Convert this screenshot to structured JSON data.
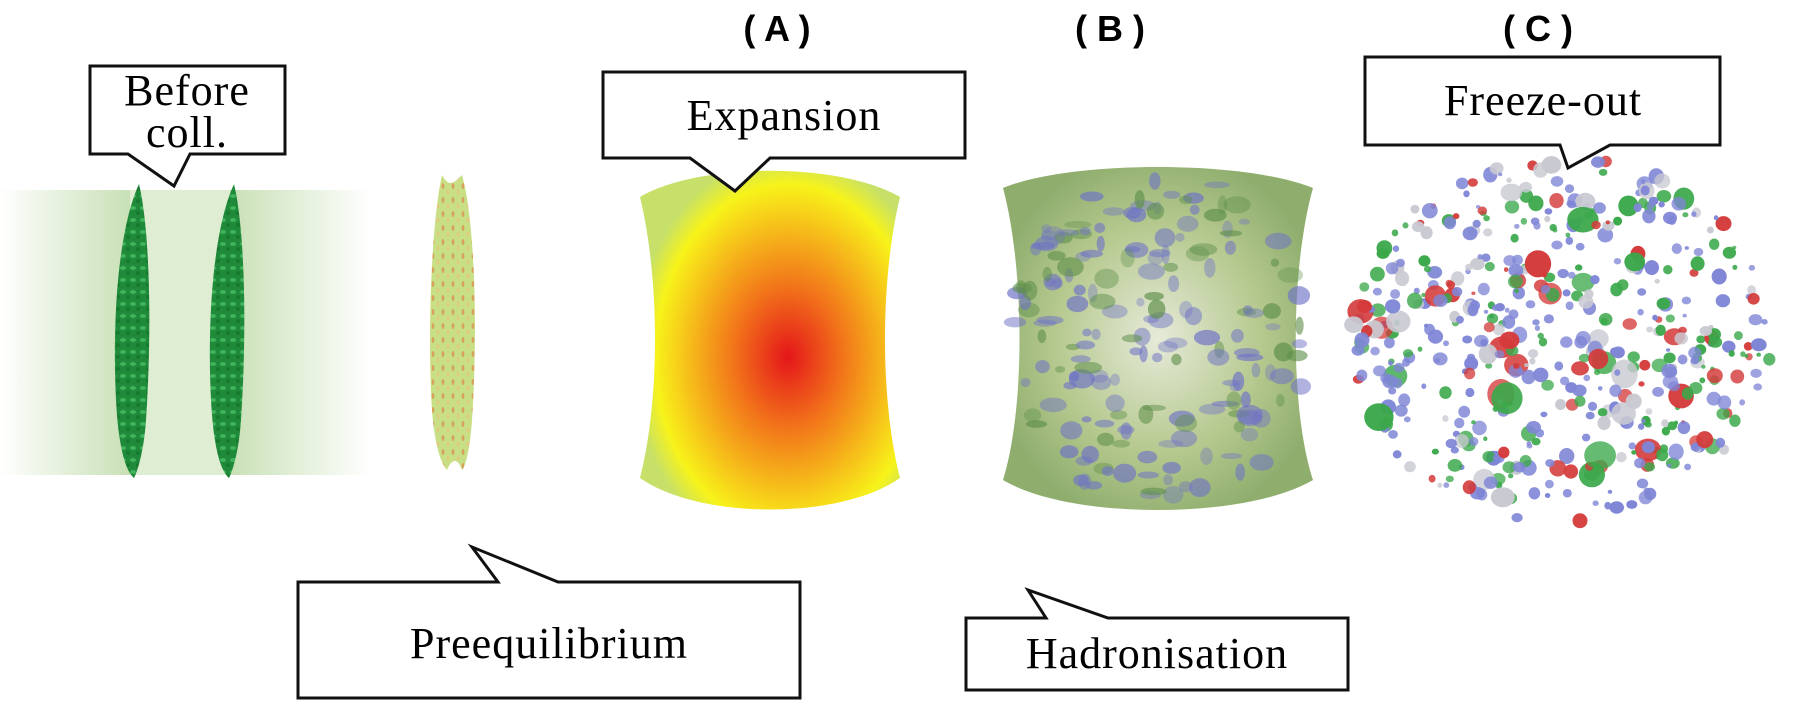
{
  "panels": {
    "a": "( A )",
    "b": "( B )",
    "c": "( C )"
  },
  "callouts": {
    "before_line1": "Before",
    "before_line2": "coll.",
    "preequilibrium": "Preequilibrium",
    "expansion": "Expansion",
    "hadronisation": "Hadronisation",
    "freeze_out": "Freeze-out"
  },
  "colors": {
    "nucleus_green": "#1f8a3a",
    "hot_core": "#e8211b",
    "hot_mid": "#f39a10",
    "hot_edge": "#f6ef12",
    "hadron_green": "#b7cf8a",
    "hadron_blue": "#6f73c6",
    "particle_blue": "#7f86d6",
    "particle_green": "#3aa84a",
    "particle_red": "#d43a3a",
    "particle_grey": "#c9c9d2"
  }
}
